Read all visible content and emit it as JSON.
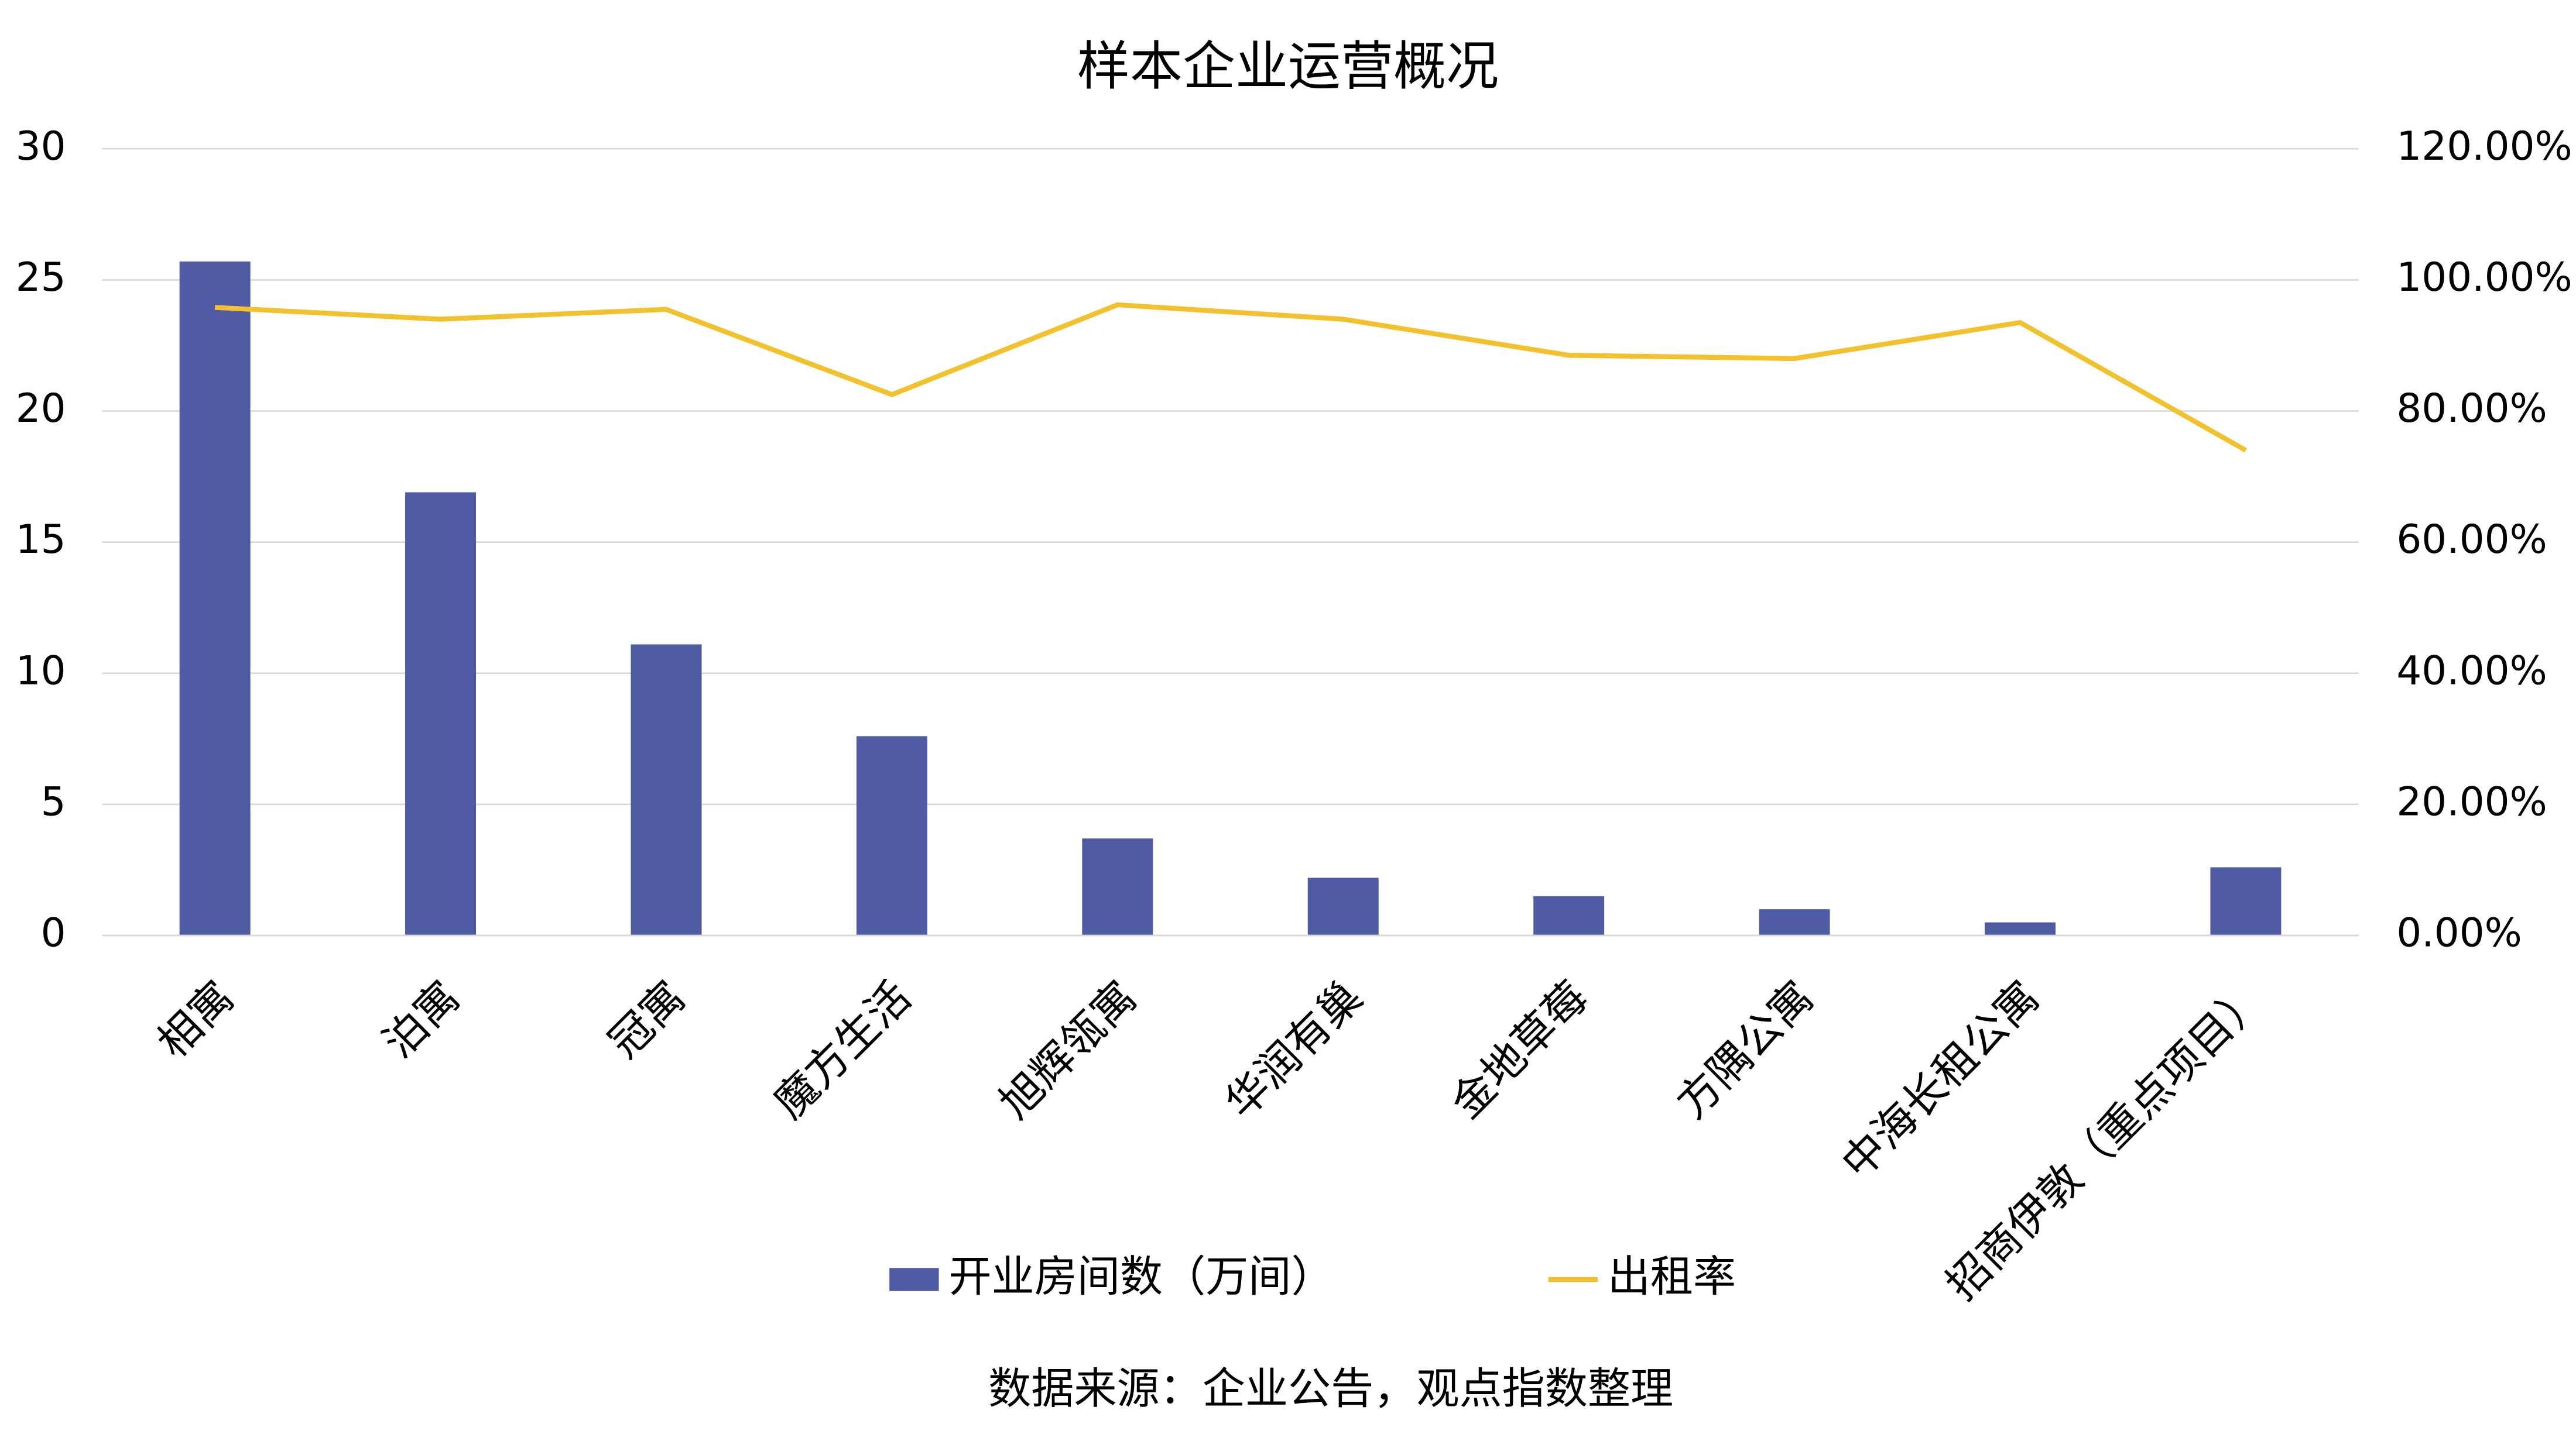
{
  "chart_data": {
    "type": "bar-line",
    "title": "样本企业运营概况",
    "categories": [
      "相寓",
      "泊寓",
      "冠寓",
      "魔方生活",
      "旭辉瓴寓",
      "华润有巢",
      "金地草莓",
      "方隅公寓",
      "中海长租公寓",
      "招商伊敦（重点项目）"
    ],
    "series": [
      {
        "name": "开业房间数（万间）",
        "type": "bar",
        "color": "#4f5ba3",
        "values": [
          25.7,
          16.9,
          11.1,
          7.6,
          3.7,
          2.2,
          1.5,
          1.0,
          0.5,
          2.6
        ]
      },
      {
        "name": "出租率",
        "type": "line",
        "axis": "y2",
        "color": "#f2c12e",
        "values": [
          95.8,
          94.0,
          95.5,
          82.5,
          96.2,
          94.0,
          88.5,
          88.0,
          93.5,
          74.0
        ]
      }
    ],
    "ylim": [
      0,
      30
    ],
    "yticks": [
      0,
      5,
      10,
      15,
      20,
      25,
      30
    ],
    "y2lim": [
      0,
      120
    ],
    "y2ticks": [
      {
        "value": 0,
        "label": "0.00%"
      },
      {
        "value": 20,
        "label": "20.00%"
      },
      {
        "value": 40,
        "label": "40.00%"
      },
      {
        "value": 60,
        "label": "60.00%"
      },
      {
        "value": 80,
        "label": "80.00%"
      },
      {
        "value": 100,
        "label": "100.00%"
      },
      {
        "value": 120,
        "label": "120.00%"
      }
    ],
    "grid": true,
    "legend": "bottom",
    "source": "数据来源：企业公告，观点指数整理"
  }
}
